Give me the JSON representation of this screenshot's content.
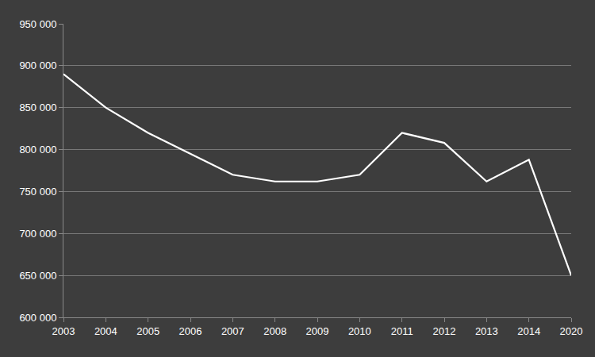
{
  "chart_data": {
    "type": "line",
    "categories": [
      "2003",
      "2004",
      "2005",
      "2006",
      "2007",
      "2008",
      "2009",
      "2010",
      "2011",
      "2012",
      "2013",
      "2014",
      "2020"
    ],
    "values": [
      890000,
      850000,
      820000,
      795000,
      770000,
      762000,
      762000,
      770000,
      820000,
      808000,
      762000,
      788000,
      650000
    ],
    "color": "#ffffff",
    "ylim": [
      600000,
      950000
    ],
    "yticks": [
      {
        "value": 600000,
        "label": "600 000"
      },
      {
        "value": 650000,
        "label": "650 000"
      },
      {
        "value": 700000,
        "label": "700 000"
      },
      {
        "value": 750000,
        "label": "750 000"
      },
      {
        "value": 800000,
        "label": "800 000"
      },
      {
        "value": 850000,
        "label": "850 000"
      },
      {
        "value": 900000,
        "label": "900 000"
      },
      {
        "value": 950000,
        "label": "950 000"
      }
    ],
    "grid": true
  }
}
